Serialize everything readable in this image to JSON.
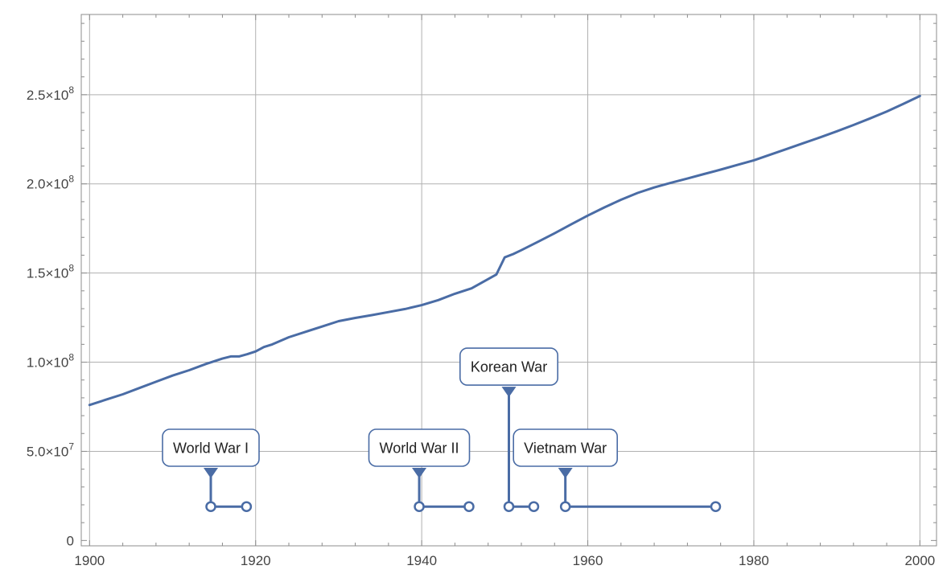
{
  "chart_data": {
    "type": "line",
    "title": "",
    "xlabel": "",
    "ylabel": "",
    "xlim": [
      1899,
      2002
    ],
    "ylim": [
      -3000000,
      295000000
    ],
    "grid": true,
    "x_ticks": [
      {
        "value": 1900,
        "label": "1900"
      },
      {
        "value": 1920,
        "label": "1920"
      },
      {
        "value": 1940,
        "label": "1940"
      },
      {
        "value": 1960,
        "label": "1960"
      },
      {
        "value": 1980,
        "label": "1980"
      },
      {
        "value": 2000,
        "label": "2000"
      }
    ],
    "y_ticks": [
      {
        "value": 0,
        "label": "0"
      },
      {
        "value": 50000000,
        "mantissa": "5.0",
        "exponent": "7"
      },
      {
        "value": 100000000,
        "mantissa": "1.0",
        "exponent": "8"
      },
      {
        "value": 150000000,
        "mantissa": "1.5",
        "exponent": "8"
      },
      {
        "value": 200000000,
        "mantissa": "2.0",
        "exponent": "8"
      },
      {
        "value": 250000000,
        "mantissa": "2.5",
        "exponent": "8"
      }
    ],
    "series": [
      {
        "color": "#4a6ca5",
        "x": [
          1900,
          1902,
          1904,
          1906,
          1908,
          1910,
          1912,
          1914,
          1916,
          1917,
          1918,
          1919,
          1920,
          1921,
          1922,
          1924,
          1926,
          1928,
          1930,
          1932,
          1934,
          1936,
          1938,
          1940,
          1942,
          1944,
          1946,
          1948,
          1949,
          1950,
          1951,
          1952,
          1954,
          1956,
          1958,
          1960,
          1962,
          1964,
          1966,
          1968,
          1970,
          1972,
          1974,
          1976,
          1978,
          1980,
          1982,
          1984,
          1986,
          1988,
          1990,
          1992,
          1994,
          1996,
          1998,
          2000
        ],
        "y": [
          76000000,
          79000000,
          82000000,
          85500000,
          89000000,
          92500000,
          95500000,
          99000000,
          102000000,
          103200000,
          103200000,
          104500000,
          106000000,
          108500000,
          110000000,
          114000000,
          117000000,
          120000000,
          123000000,
          124800000,
          126400000,
          128100000,
          129800000,
          132000000,
          134800000,
          138400000,
          141400000,
          146600000,
          149200000,
          158800000,
          160600000,
          162800000,
          167500000,
          172300000,
          177300000,
          182200000,
          186800000,
          191100000,
          194900000,
          198000000,
          200600000,
          203000000,
          205500000,
          208000000,
          210600000,
          213200000,
          216400000,
          219600000,
          222900000,
          226100000,
          229500000,
          233000000,
          236700000,
          240600000,
          244800000,
          249300000
        ]
      }
    ],
    "annotations": [
      {
        "label": "World War I",
        "start": 1914.6,
        "end": 1918.9,
        "y": 19000000,
        "label_y": 52000000
      },
      {
        "label": "World War II",
        "start": 1939.7,
        "end": 1945.7,
        "y": 19000000,
        "label_y": 52000000
      },
      {
        "label": "Korean War",
        "start": 1950.5,
        "end": 1953.5,
        "y": 19000000,
        "label_y": 97500000
      },
      {
        "label": "Vietnam War",
        "start": 1957.3,
        "end": 1975.4,
        "y": 19000000,
        "label_y": 52000000
      }
    ]
  }
}
